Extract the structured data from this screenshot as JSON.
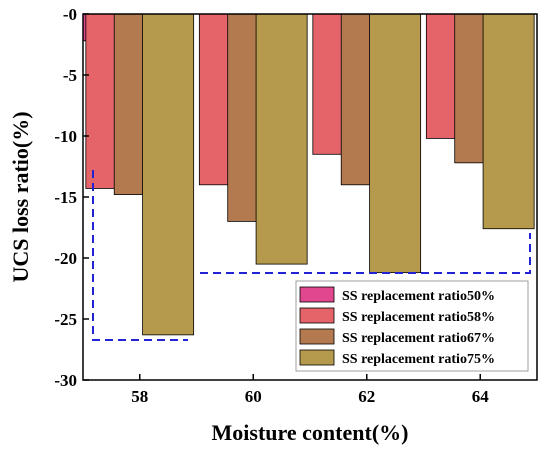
{
  "chart_data": {
    "type": "bar",
    "xlabel": "Moisture content(%)",
    "ylabel": "UCS loss ratio(%)",
    "ylim": [
      -30,
      0
    ],
    "yticks": [
      0,
      -5,
      -10,
      -15,
      -20,
      -25,
      -30
    ],
    "ytick_labels": [
      "-0",
      "-5",
      "-10",
      "-15",
      "-20",
      "-25",
      "-30"
    ],
    "xlim": [
      57,
      65
    ],
    "xticks": [
      58,
      60,
      62,
      64
    ],
    "xtick_labels": [
      "58",
      "60",
      "62",
      "64"
    ],
    "bar_width": 0.9,
    "legend_position": "bottom-right",
    "series": [
      {
        "name": "SS replacement ratio50%",
        "color": "#e0478f",
        "points": [
          {
            "x": 57,
            "y": -2.2
          }
        ]
      },
      {
        "name": "SS replacement ratio58%",
        "color": "#e4646a",
        "points": [
          {
            "x": 57.5,
            "y": -14.3
          },
          {
            "x": 59.5,
            "y": -14.0
          },
          {
            "x": 61.5,
            "y": -11.5
          },
          {
            "x": 63.5,
            "y": -10.2
          }
        ]
      },
      {
        "name": "SS replacement ratio67%",
        "color": "#b47a4f",
        "points": [
          {
            "x": 58.0,
            "y": -14.8
          },
          {
            "x": 60.0,
            "y": -17.0
          },
          {
            "x": 62.0,
            "y": -14.0
          },
          {
            "x": 64.0,
            "y": -12.2
          }
        ]
      },
      {
        "name": "SS replacement ratio75%",
        "color": "#b59a4e",
        "points": [
          {
            "x": 58.5,
            "y": -26.3
          },
          {
            "x": 60.5,
            "y": -20.5
          },
          {
            "x": 62.5,
            "y": -21.2
          },
          {
            "x": 64.5,
            "y": -17.6
          }
        ]
      }
    ]
  }
}
